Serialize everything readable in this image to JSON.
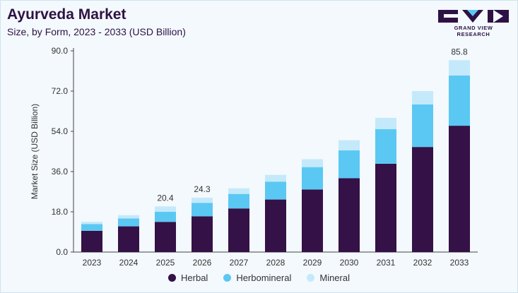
{
  "header": {
    "title": "Ayurveda Market",
    "subtitle": "Size, by Form, 2023 - 2033 (USD Billion)"
  },
  "logo": {
    "text": "GRAND VIEW RESEARCH"
  },
  "colors": {
    "herbal": "#341146",
    "herbomineral": "#5bc8f3",
    "mineral": "#c4e9fa"
  },
  "chart_data": {
    "type": "bar",
    "stacked": true,
    "categories": [
      "2023",
      "2024",
      "2025",
      "2026",
      "2027",
      "2028",
      "2029",
      "2030",
      "2031",
      "2032",
      "2033"
    ],
    "series": [
      {
        "name": "Herbal",
        "values": [
          9.5,
          11.5,
          13.5,
          16.0,
          19.5,
          23.5,
          28.0,
          33.0,
          39.5,
          47.0,
          56.5
        ]
      },
      {
        "name": "Herbomineral",
        "values": [
          3.0,
          3.5,
          4.5,
          6.0,
          6.5,
          8.0,
          10.0,
          12.5,
          15.5,
          19.0,
          22.5
        ]
      },
      {
        "name": "Mineral",
        "values": [
          1.0,
          1.5,
          2.4,
          2.3,
          2.5,
          3.0,
          3.5,
          4.5,
          5.0,
          6.0,
          6.8
        ]
      }
    ],
    "data_labels": [
      {
        "category": "2025",
        "text": "20.4"
      },
      {
        "category": "2026",
        "text": "24.3"
      },
      {
        "category": "2033",
        "text": "85.8"
      }
    ],
    "ylabel": "Market Size (USD Billion)",
    "xlabel": "",
    "ylim": [
      0,
      90
    ],
    "yticks": [
      "0.0",
      "18.0",
      "36.0",
      "54.0",
      "72.0",
      "90.0"
    ],
    "legend_position": "bottom",
    "grid": false
  }
}
